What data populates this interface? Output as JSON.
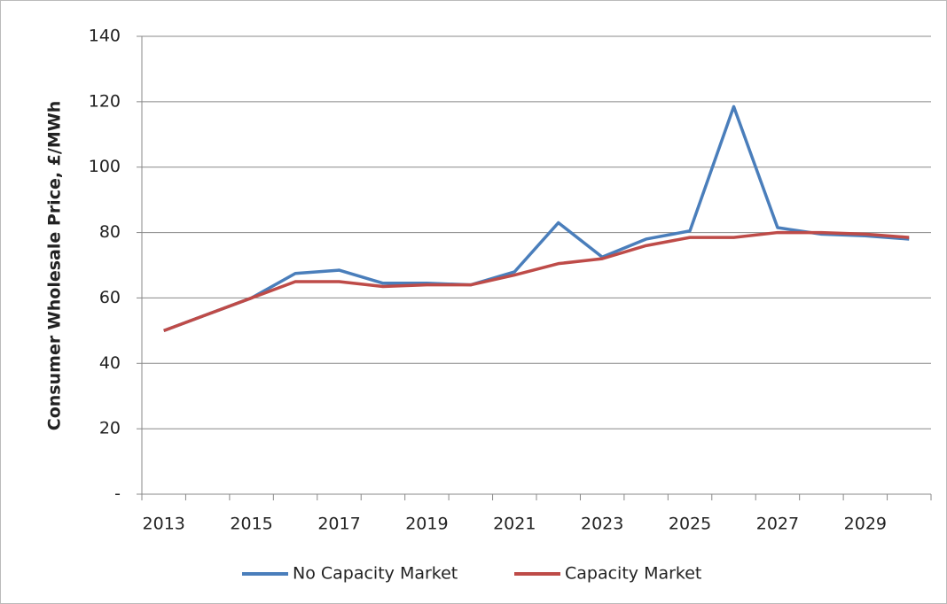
{
  "chart_data": {
    "type": "line",
    "y_label": "Consumer Wholesale Price, £/MWh",
    "categories": [
      "2013",
      null,
      "2015",
      null,
      "2017",
      null,
      "2019",
      null,
      "2021",
      null,
      "2023",
      null,
      "2025",
      null,
      "2027",
      null,
      "2029",
      null
    ],
    "series": [
      {
        "name": "No Capacity Market",
        "color": "#4a7ebb",
        "values": [
          50,
          55,
          60,
          67.5,
          68.5,
          64.5,
          64.5,
          64,
          68,
          83,
          72.5,
          78,
          80.5,
          118.5,
          81.5,
          79.5,
          79,
          78
        ]
      },
      {
        "name": "Capacity Market",
        "color": "#be4b48",
        "values": [
          50,
          55,
          60,
          65,
          65,
          63.5,
          64,
          64,
          67,
          70.5,
          72,
          76,
          78.5,
          78.5,
          80,
          80,
          79.5,
          78.5
        ]
      }
    ],
    "ylim": [
      0,
      140
    ],
    "yticks": [
      {
        "value": 0,
        "label": "-"
      },
      20,
      40,
      60,
      80,
      100,
      120,
      140
    ],
    "grid": true,
    "legend": "bottom"
  }
}
